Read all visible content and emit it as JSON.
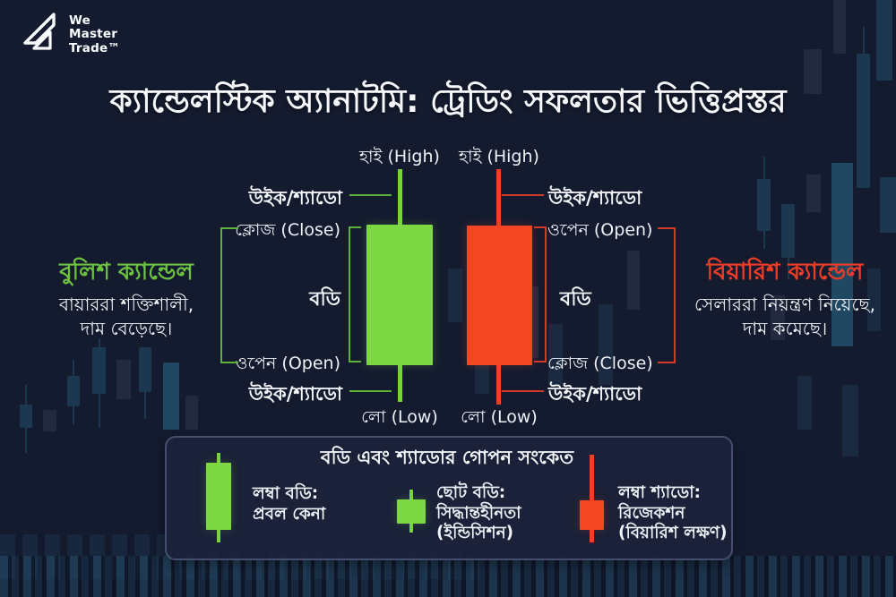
{
  "logo": {
    "line1": "We",
    "line2": "Master",
    "line3": "Trade™"
  },
  "title": "ক্যান্ডেলস্টিক অ্যানাটমি: ট্রেডিং সফলতার ভিত্তিপ্রস্তর",
  "colors": {
    "bullish": "#7ed843",
    "bearish": "#f44622",
    "background": "#141b2f"
  },
  "bullish": {
    "name": "বুলিশ ক্যান্ডেল",
    "desc1": "বায়াররা শক্তিশালী,",
    "desc2": "দাম বেড়েছে।",
    "high": "হাই (High)",
    "wick_top": "উইক/শ্যাডো",
    "close": "ক্লোজ (Close)",
    "body": "বডি",
    "open": "ওপেন (Open)",
    "wick_bottom": "উইক/শ্যাডো",
    "low": "লো (Low)"
  },
  "bearish": {
    "name": "বিয়ারিশ ক্যান্ডেল",
    "desc1": "সেলাররা নিয়ন্ত্রণ নিয়েছে,",
    "desc2": "দাম কমেছে।",
    "high": "হাই (High)",
    "wick_top": "উইক/শ্যাডো",
    "open": "ওপেন (Open)",
    "body": "বডি",
    "close": "ক্লোজ (Close)",
    "wick_bottom": "উইক/শ্যাডো",
    "low": "লো (Low)"
  },
  "legend": {
    "title": "বডি এবং শ্যাডোর গোপন সংকেত",
    "items": [
      {
        "icon": "long-body-candle",
        "lines": [
          "লম্বা বডি:",
          "প্রবল কেনা"
        ]
      },
      {
        "icon": "small-body-candle",
        "lines": [
          "ছোট বডি:",
          "সিদ্ধান্তহীনতা",
          "(ইন্ডিসিশন)"
        ]
      },
      {
        "icon": "long-shadow-candle",
        "lines": [
          "লম্বা শ্যাডো:",
          "রিজেকশন",
          "(বিয়ারিশ লক্ষণ)"
        ]
      }
    ]
  }
}
